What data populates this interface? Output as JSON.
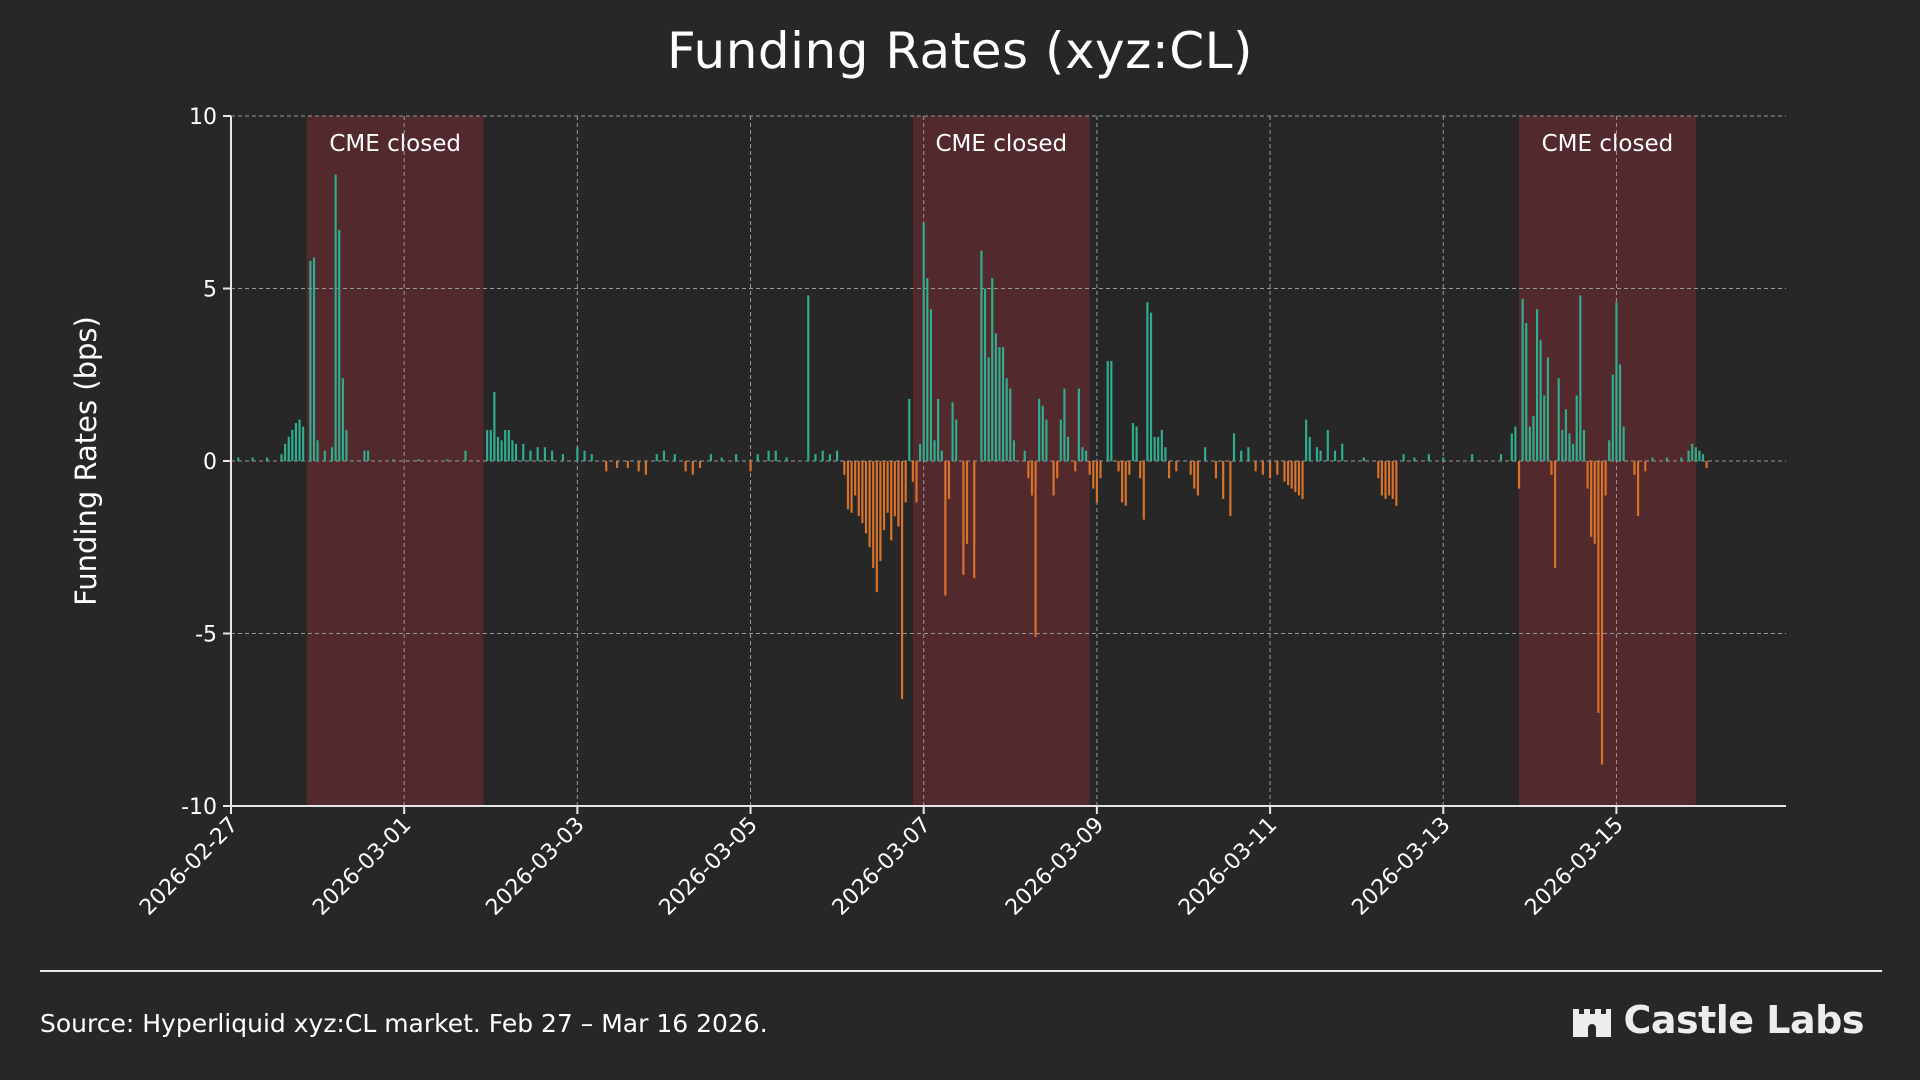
{
  "chart_data": {
    "type": "bar",
    "title": "Funding Rates (xyz:CL)",
    "ylabel": "Funding Rates (bps)",
    "xlabel": "",
    "x_start": "2026-02-27",
    "x_end": "2026-03-16T23:00",
    "ylim": [
      -10,
      10
    ],
    "yticks": [
      -10,
      -5,
      0,
      5,
      10
    ],
    "yticks_labels": [
      "-10",
      "-5",
      "0",
      "5",
      "10"
    ],
    "xticks": [
      "2026-02-27",
      "2026-03-01",
      "2026-03-03",
      "2026-03-05",
      "2026-03-07",
      "2026-03-09",
      "2026-03-11",
      "2026-03-13",
      "2026-03-15"
    ],
    "grid": true,
    "shaded_regions": [
      {
        "start": "2026-02-27T21:00",
        "end": "2026-03-01T22:00",
        "label": "CME closed"
      },
      {
        "start": "2026-03-06T21:00",
        "end": "2026-03-08T22:00",
        "label": "CME closed"
      },
      {
        "start": "2026-03-13T21:00",
        "end": "2026-03-15T22:00",
        "label": "CME closed"
      }
    ],
    "colors": {
      "positive": "#2fae8f",
      "negative": "#d9722a",
      "shade": "#5a2a2e",
      "grid": "#9a9a9a",
      "axis": "#e6e6e6"
    },
    "series": [
      {
        "points": [
          [
            "2026-02-27T02:00",
            0.1
          ],
          [
            "2026-02-27T06:00",
            0.1
          ],
          [
            "2026-02-27T10:00",
            0.1
          ],
          [
            "2026-02-27T14:00",
            0.2
          ],
          [
            "2026-02-27T15:00",
            0.5
          ],
          [
            "2026-02-27T16:00",
            0.7
          ],
          [
            "2026-02-27T17:00",
            0.9
          ],
          [
            "2026-02-27T18:00",
            1.1
          ],
          [
            "2026-02-27T19:00",
            1.2
          ],
          [
            "2026-02-27T20:00",
            1.0
          ],
          [
            "2026-02-27T22:00",
            5.8
          ],
          [
            "2026-02-27T23:00",
            5.9
          ],
          [
            "2026-02-28T00:00",
            0.6
          ],
          [
            "2026-02-28T02:00",
            0.3
          ],
          [
            "2026-02-28T04:00",
            0.4
          ],
          [
            "2026-02-28T05:00",
            8.3
          ],
          [
            "2026-02-28T06:00",
            6.7
          ],
          [
            "2026-02-28T07:00",
            2.4
          ],
          [
            "2026-02-28T08:00",
            0.9
          ],
          [
            "2026-02-28T13:00",
            0.3
          ],
          [
            "2026-02-28T14:00",
            0.3
          ],
          [
            "2026-02-28T21:00",
            0.05
          ],
          [
            "2026-03-01T04:00",
            0.05
          ],
          [
            "2026-03-01T12:00",
            0.05
          ],
          [
            "2026-03-01T17:00",
            0.3
          ],
          [
            "2026-03-01T23:00",
            0.9
          ],
          [
            "2026-03-02T00:00",
            0.9
          ],
          [
            "2026-03-02T01:00",
            2.0
          ],
          [
            "2026-03-02T02:00",
            0.7
          ],
          [
            "2026-03-02T03:00",
            0.6
          ],
          [
            "2026-03-02T04:00",
            0.9
          ],
          [
            "2026-03-02T05:00",
            0.9
          ],
          [
            "2026-03-02T06:00",
            0.6
          ],
          [
            "2026-03-02T07:00",
            0.5
          ],
          [
            "2026-03-02T09:00",
            0.5
          ],
          [
            "2026-03-02T11:00",
            0.3
          ],
          [
            "2026-03-02T13:00",
            0.4
          ],
          [
            "2026-03-02T15:00",
            0.4
          ],
          [
            "2026-03-02T17:00",
            0.3
          ],
          [
            "2026-03-02T20:00",
            0.2
          ],
          [
            "2026-03-03T00:00",
            0.4
          ],
          [
            "2026-03-03T02:00",
            0.3
          ],
          [
            "2026-03-03T04:00",
            0.2
          ],
          [
            "2026-03-03T08:00",
            -0.3
          ],
          [
            "2026-03-03T11:00",
            -0.2
          ],
          [
            "2026-03-03T14:00",
            -0.2
          ],
          [
            "2026-03-03T17:00",
            -0.3
          ],
          [
            "2026-03-03T19:00",
            -0.4
          ],
          [
            "2026-03-03T22:00",
            0.2
          ],
          [
            "2026-03-04T00:00",
            0.3
          ],
          [
            "2026-03-04T03:00",
            0.2
          ],
          [
            "2026-03-04T06:00",
            -0.3
          ],
          [
            "2026-03-04T08:00",
            -0.4
          ],
          [
            "2026-03-04T10:00",
            -0.2
          ],
          [
            "2026-03-04T13:00",
            0.2
          ],
          [
            "2026-03-04T16:00",
            0.1
          ],
          [
            "2026-03-04T20:00",
            0.2
          ],
          [
            "2026-03-05T00:00",
            -0.3
          ],
          [
            "2026-03-05T02:00",
            0.2
          ],
          [
            "2026-03-05T05:00",
            0.3
          ],
          [
            "2026-03-05T07:00",
            0.3
          ],
          [
            "2026-03-05T10:00",
            0.1
          ],
          [
            "2026-03-05T16:00",
            4.8
          ],
          [
            "2026-03-05T18:00",
            0.2
          ],
          [
            "2026-03-05T20:00",
            0.3
          ],
          [
            "2026-03-05T22:00",
            0.2
          ],
          [
            "2026-03-06T00:00",
            0.3
          ],
          [
            "2026-03-06T02:00",
            -0.4
          ],
          [
            "2026-03-06T03:00",
            -1.4
          ],
          [
            "2026-03-06T04:00",
            -1.5
          ],
          [
            "2026-03-06T05:00",
            -1.0
          ],
          [
            "2026-03-06T06:00",
            -1.6
          ],
          [
            "2026-03-06T07:00",
            -1.8
          ],
          [
            "2026-03-06T08:00",
            -2.1
          ],
          [
            "2026-03-06T09:00",
            -2.5
          ],
          [
            "2026-03-06T10:00",
            -3.1
          ],
          [
            "2026-03-06T11:00",
            -3.8
          ],
          [
            "2026-03-06T12:00",
            -2.9
          ],
          [
            "2026-03-06T13:00",
            -2.0
          ],
          [
            "2026-03-06T14:00",
            -1.5
          ],
          [
            "2026-03-06T15:00",
            -2.3
          ],
          [
            "2026-03-06T16:00",
            -1.6
          ],
          [
            "2026-03-06T17:00",
            -1.9
          ],
          [
            "2026-03-06T18:00",
            -6.9
          ],
          [
            "2026-03-06T19:00",
            -1.2
          ],
          [
            "2026-03-06T20:00",
            1.8
          ],
          [
            "2026-03-06T21:00",
            -0.6
          ],
          [
            "2026-03-06T22:00",
            -1.2
          ],
          [
            "2026-03-06T23:00",
            0.5
          ],
          [
            "2026-03-07T00:00",
            6.9
          ],
          [
            "2026-03-07T01:00",
            5.3
          ],
          [
            "2026-03-07T02:00",
            4.4
          ],
          [
            "2026-03-07T03:00",
            0.6
          ],
          [
            "2026-03-07T04:00",
            1.8
          ],
          [
            "2026-03-07T05:00",
            0.3
          ],
          [
            "2026-03-07T06:00",
            -3.9
          ],
          [
            "2026-03-07T07:00",
            -1.1
          ],
          [
            "2026-03-07T08:00",
            1.7
          ],
          [
            "2026-03-07T09:00",
            1.2
          ],
          [
            "2026-03-07T11:00",
            -3.3
          ],
          [
            "2026-03-07T12:00",
            -2.4
          ],
          [
            "2026-03-07T14:00",
            -3.4
          ],
          [
            "2026-03-07T16:00",
            6.1
          ],
          [
            "2026-03-07T17:00",
            5.0
          ],
          [
            "2026-03-07T18:00",
            3.0
          ],
          [
            "2026-03-07T19:00",
            5.3
          ],
          [
            "2026-03-07T20:00",
            3.7
          ],
          [
            "2026-03-07T21:00",
            3.3
          ],
          [
            "2026-03-07T22:00",
            3.3
          ],
          [
            "2026-03-07T23:00",
            2.4
          ],
          [
            "2026-03-08T00:00",
            2.1
          ],
          [
            "2026-03-08T01:00",
            0.6
          ],
          [
            "2026-03-08T04:00",
            0.3
          ],
          [
            "2026-03-08T05:00",
            -0.5
          ],
          [
            "2026-03-08T06:00",
            -1.0
          ],
          [
            "2026-03-08T07:00",
            -5.1
          ],
          [
            "2026-03-08T08:00",
            1.8
          ],
          [
            "2026-03-08T09:00",
            1.6
          ],
          [
            "2026-03-08T10:00",
            1.2
          ],
          [
            "2026-03-08T12:00",
            -1.0
          ],
          [
            "2026-03-08T13:00",
            -0.5
          ],
          [
            "2026-03-08T14:00",
            1.2
          ],
          [
            "2026-03-08T15:00",
            2.1
          ],
          [
            "2026-03-08T16:00",
            0.7
          ],
          [
            "2026-03-08T18:00",
            -0.3
          ],
          [
            "2026-03-08T19:00",
            2.1
          ],
          [
            "2026-03-08T20:00",
            0.4
          ],
          [
            "2026-03-08T21:00",
            0.3
          ],
          [
            "2026-03-08T22:00",
            -0.4
          ],
          [
            "2026-03-08T23:00",
            -0.8
          ],
          [
            "2026-03-09T00:00",
            -1.2
          ],
          [
            "2026-03-09T01:00",
            -0.5
          ],
          [
            "2026-03-09T03:00",
            2.9
          ],
          [
            "2026-03-09T04:00",
            2.9
          ],
          [
            "2026-03-09T06:00",
            -0.3
          ],
          [
            "2026-03-09T07:00",
            -1.2
          ],
          [
            "2026-03-09T08:00",
            -1.3
          ],
          [
            "2026-03-09T09:00",
            -0.4
          ],
          [
            "2026-03-09T10:00",
            1.1
          ],
          [
            "2026-03-09T11:00",
            1.0
          ],
          [
            "2026-03-09T12:00",
            -0.5
          ],
          [
            "2026-03-09T13:00",
            -1.7
          ],
          [
            "2026-03-09T14:00",
            4.6
          ],
          [
            "2026-03-09T15:00",
            4.3
          ],
          [
            "2026-03-09T16:00",
            0.7
          ],
          [
            "2026-03-09T17:00",
            0.7
          ],
          [
            "2026-03-09T18:00",
            0.9
          ],
          [
            "2026-03-09T19:00",
            0.4
          ],
          [
            "2026-03-09T20:00",
            -0.5
          ],
          [
            "2026-03-09T22:00",
            -0.3
          ],
          [
            "2026-03-10T02:00",
            -0.4
          ],
          [
            "2026-03-10T03:00",
            -0.8
          ],
          [
            "2026-03-10T04:00",
            -1.0
          ],
          [
            "2026-03-10T06:00",
            0.4
          ],
          [
            "2026-03-10T09:00",
            -0.5
          ],
          [
            "2026-03-10T11:00",
            -1.1
          ],
          [
            "2026-03-10T13:00",
            -1.6
          ],
          [
            "2026-03-10T14:00",
            0.8
          ],
          [
            "2026-03-10T16:00",
            0.3
          ],
          [
            "2026-03-10T18:00",
            0.4
          ],
          [
            "2026-03-10T20:00",
            -0.3
          ],
          [
            "2026-03-10T22:00",
            -0.4
          ],
          [
            "2026-03-11T00:00",
            -0.5
          ],
          [
            "2026-03-11T02:00",
            -0.4
          ],
          [
            "2026-03-11T04:00",
            -0.6
          ],
          [
            "2026-03-11T05:00",
            -0.7
          ],
          [
            "2026-03-11T06:00",
            -0.8
          ],
          [
            "2026-03-11T07:00",
            -0.9
          ],
          [
            "2026-03-11T08:00",
            -1.0
          ],
          [
            "2026-03-11T09:00",
            -1.1
          ],
          [
            "2026-03-11T10:00",
            1.2
          ],
          [
            "2026-03-11T11:00",
            0.7
          ],
          [
            "2026-03-11T13:00",
            0.4
          ],
          [
            "2026-03-11T14:00",
            0.3
          ],
          [
            "2026-03-11T16:00",
            0.9
          ],
          [
            "2026-03-11T18:00",
            0.3
          ],
          [
            "2026-03-11T20:00",
            0.5
          ],
          [
            "2026-03-12T02:00",
            0.1
          ],
          [
            "2026-03-12T06:00",
            -0.5
          ],
          [
            "2026-03-12T07:00",
            -1.0
          ],
          [
            "2026-03-12T08:00",
            -1.1
          ],
          [
            "2026-03-12T09:00",
            -1.0
          ],
          [
            "2026-03-12T10:00",
            -1.1
          ],
          [
            "2026-03-12T11:00",
            -1.3
          ],
          [
            "2026-03-12T13:00",
            0.2
          ],
          [
            "2026-03-12T16:00",
            0.1
          ],
          [
            "2026-03-12T20:00",
            0.2
          ],
          [
            "2026-03-13T00:00",
            0.1
          ],
          [
            "2026-03-13T08:00",
            0.2
          ],
          [
            "2026-03-13T16:00",
            0.2
          ],
          [
            "2026-03-13T19:00",
            0.8
          ],
          [
            "2026-03-13T20:00",
            1.0
          ],
          [
            "2026-03-13T21:00",
            -0.8
          ],
          [
            "2026-03-13T22:00",
            4.7
          ],
          [
            "2026-03-13T23:00",
            4.0
          ],
          [
            "2026-03-14T00:00",
            1.0
          ],
          [
            "2026-03-14T01:00",
            1.3
          ],
          [
            "2026-03-14T02:00",
            4.4
          ],
          [
            "2026-03-14T03:00",
            3.5
          ],
          [
            "2026-03-14T04:00",
            1.9
          ],
          [
            "2026-03-14T05:00",
            3.0
          ],
          [
            "2026-03-14T06:00",
            -0.4
          ],
          [
            "2026-03-14T07:00",
            -3.1
          ],
          [
            "2026-03-14T08:00",
            2.4
          ],
          [
            "2026-03-14T09:00",
            0.9
          ],
          [
            "2026-03-14T10:00",
            1.5
          ],
          [
            "2026-03-14T11:00",
            0.8
          ],
          [
            "2026-03-14T12:00",
            0.5
          ],
          [
            "2026-03-14T13:00",
            1.9
          ],
          [
            "2026-03-14T14:00",
            4.8
          ],
          [
            "2026-03-14T15:00",
            0.9
          ],
          [
            "2026-03-14T16:00",
            -0.8
          ],
          [
            "2026-03-14T17:00",
            -2.2
          ],
          [
            "2026-03-14T18:00",
            -2.4
          ],
          [
            "2026-03-14T19:00",
            -7.3
          ],
          [
            "2026-03-14T20:00",
            -8.8
          ],
          [
            "2026-03-14T21:00",
            -1.0
          ],
          [
            "2026-03-14T22:00",
            0.6
          ],
          [
            "2026-03-14T23:00",
            2.5
          ],
          [
            "2026-03-15T00:00",
            4.6
          ],
          [
            "2026-03-15T01:00",
            2.8
          ],
          [
            "2026-03-15T02:00",
            1.0
          ],
          [
            "2026-03-15T05:00",
            -0.4
          ],
          [
            "2026-03-15T06:00",
            -1.6
          ],
          [
            "2026-03-15T08:00",
            -0.3
          ],
          [
            "2026-03-15T10:00",
            0.1
          ],
          [
            "2026-03-15T14:00",
            0.1
          ],
          [
            "2026-03-15T18:00",
            0.1
          ],
          [
            "2026-03-15T20:00",
            0.3
          ],
          [
            "2026-03-15T21:00",
            0.5
          ],
          [
            "2026-03-15T22:00",
            0.4
          ],
          [
            "2026-03-15T23:00",
            0.3
          ],
          [
            "2026-03-16T00:00",
            0.2
          ],
          [
            "2026-03-16T01:00",
            -0.2
          ]
        ]
      }
    ]
  },
  "footer": {
    "source_note": "Source: Hyperliquid xyz:CL market. Feb 27 – Mar 16 2026.",
    "brand_name": "Castle Labs"
  }
}
